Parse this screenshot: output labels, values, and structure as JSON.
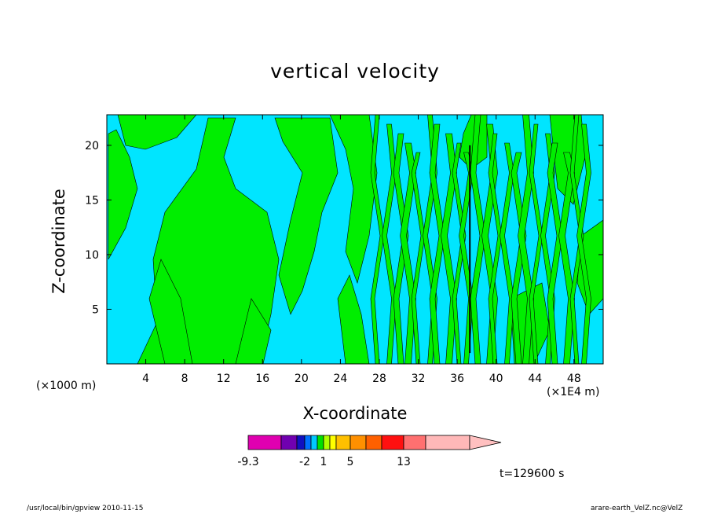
{
  "chart_data": {
    "type": "heatmap",
    "title": "vertical velocity",
    "xlabel": "X-coordinate",
    "ylabel": "Z-coordinate",
    "x_unit_left": "(×1000 m)",
    "x_unit_right": "(×1E4 m)",
    "xlim": [
      0,
      51
    ],
    "ylim": [
      0,
      22.8
    ],
    "x_ticks": [
      "4",
      "8",
      "12",
      "16",
      "20",
      "24",
      "28",
      "32",
      "36",
      "40",
      "44",
      "48"
    ],
    "y_ticks": [
      "5",
      "10",
      "15",
      "20"
    ],
    "colorbar": {
      "labels": [
        "-9.3",
        "-2",
        "1",
        "5",
        "13"
      ],
      "colors": [
        "#e000b0",
        "#7000b0",
        "#1010c0",
        "#0070ff",
        "#00c8ff",
        "#00e000",
        "#b0ff00",
        "#ffff00",
        "#ffc000",
        "#ff9000",
        "#ff6000",
        "#ff1010",
        "#ff7070",
        "#ffb8b8"
      ]
    },
    "time_label": "t=129600 s",
    "colors": {
      "negative": "#00e5ff",
      "positive": "#00ee00"
    }
  },
  "footer": {
    "left": "/usr/local/bin/gpview  2010-11-15",
    "right": "arare-earth_VelZ.nc@VelZ"
  }
}
